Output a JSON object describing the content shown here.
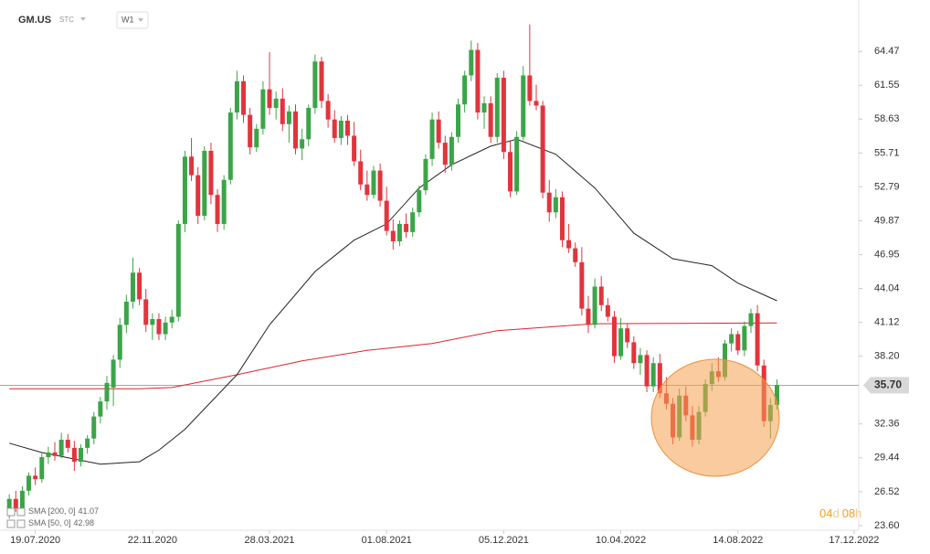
{
  "chart_data": {
    "type": "candlestick",
    "symbol": "GM.US",
    "symbol_tag": "STC",
    "interval": "W1",
    "up_color": "#3ca448",
    "down_color": "#e2343c",
    "xlim": [
      "11.06.2020",
      "22.12.2022"
    ],
    "ylim": [
      23.2,
      68.9
    ],
    "xticks": [
      "19.07.2020",
      "22.11.2020",
      "28.03.2021",
      "01.08.2021",
      "05.12.2021",
      "10.04.2022",
      "14.08.2022",
      "17.12.2022"
    ],
    "yticks": [
      64.47,
      61.55,
      58.63,
      55.71,
      52.79,
      49.87,
      46.95,
      44.04,
      41.12,
      {
        "value": 38.2,
        "label": "38.20"
      },
      32.36,
      29.44,
      26.52,
      {
        "value": 23.6,
        "label": "23.60"
      }
    ],
    "last_price": {
      "value": 35.7,
      "label": "35.70"
    },
    "countdown": [
      "04",
      "d",
      "08",
      "h"
    ],
    "x": [
      "21.06.2020",
      "28.06.2020",
      "05.07.2020",
      "12.07.2020",
      "19.07.2020",
      "26.07.2020",
      "02.08.2020",
      "09.08.2020",
      "16.08.2020",
      "23.08.2020",
      "30.08.2020",
      "06.09.2020",
      "13.09.2020",
      "20.09.2020",
      "27.09.2020",
      "04.10.2020",
      "11.10.2020",
      "18.10.2020",
      "25.10.2020",
      "01.11.2020",
      "08.11.2020",
      "15.11.2020",
      "22.11.2020",
      "29.11.2020",
      "06.12.2020",
      "13.12.2020",
      "20.12.2020",
      "27.12.2020",
      "03.01.2021",
      "10.01.2021",
      "17.01.2021",
      "24.01.2021",
      "31.01.2021",
      "07.02.2021",
      "14.02.2021",
      "21.02.2021",
      "28.02.2021",
      "07.03.2021",
      "14.03.2021",
      "21.03.2021",
      "28.03.2021",
      "04.04.2021",
      "11.04.2021",
      "18.04.2021",
      "25.04.2021",
      "02.05.2021",
      "09.05.2021",
      "16.05.2021",
      "23.05.2021",
      "30.05.2021",
      "06.06.2021",
      "13.06.2021",
      "20.06.2021",
      "27.06.2021",
      "04.07.2021",
      "11.07.2021",
      "18.07.2021",
      "25.07.2021",
      "01.08.2021",
      "08.08.2021",
      "15.08.2021",
      "22.08.2021",
      "29.08.2021",
      "05.09.2021",
      "12.09.2021",
      "19.09.2021",
      "26.09.2021",
      "03.10.2021",
      "10.10.2021",
      "17.10.2021",
      "24.10.2021",
      "31.10.2021",
      "07.11.2021",
      "14.11.2021",
      "21.11.2021",
      "28.11.2021",
      "05.12.2021",
      "12.12.2021",
      "19.12.2021",
      "26.12.2021",
      "02.01.2022",
      "09.01.2022",
      "16.01.2022",
      "23.01.2022",
      "30.01.2022",
      "06.02.2022",
      "13.02.2022",
      "20.02.2022",
      "27.02.2022",
      "06.03.2022",
      "13.03.2022",
      "20.03.2022",
      "27.03.2022",
      "03.04.2022",
      "10.04.2022",
      "17.04.2022",
      "24.04.2022",
      "01.05.2022",
      "08.05.2022",
      "15.05.2022",
      "22.05.2022",
      "29.05.2022",
      "05.06.2022",
      "12.06.2022",
      "19.06.2022",
      "26.06.2022",
      "03.07.2022",
      "10.07.2022",
      "17.07.2022",
      "24.07.2022",
      "31.07.2022",
      "07.08.2022",
      "14.08.2022",
      "21.08.2022",
      "28.08.2022",
      "04.09.2022",
      "11.09.2022",
      "18.09.2022",
      "25.09.2022"
    ],
    "ohlc": [
      [
        24.8,
        26.3,
        24.2,
        25.9
      ],
      [
        25.9,
        26.6,
        24.8,
        25.1
      ],
      [
        25.1,
        27.0,
        24.9,
        26.6
      ],
      [
        26.6,
        28.2,
        26.2,
        27.9
      ],
      [
        27.9,
        28.6,
        27.1,
        27.6
      ],
      [
        27.6,
        29.9,
        27.3,
        29.5
      ],
      [
        29.5,
        30.4,
        28.9,
        29.9
      ],
      [
        29.9,
        30.8,
        29.2,
        29.6
      ],
      [
        29.6,
        31.6,
        29.4,
        31.0
      ],
      [
        31.0,
        31.5,
        29.9,
        30.3
      ],
      [
        30.3,
        30.9,
        28.3,
        29.1
      ],
      [
        29.1,
        30.6,
        28.7,
        30.3
      ],
      [
        30.3,
        31.4,
        29.8,
        31.1
      ],
      [
        31.1,
        33.4,
        30.6,
        33.0
      ],
      [
        33.0,
        34.7,
        32.4,
        34.3
      ],
      [
        34.3,
        36.5,
        33.6,
        35.9
      ],
      [
        35.5,
        38.3,
        33.9,
        37.9
      ],
      [
        37.9,
        41.5,
        37.2,
        40.9
      ],
      [
        40.9,
        43.5,
        40.2,
        42.9
      ],
      [
        42.9,
        46.7,
        42.3,
        45.4
      ],
      [
        45.4,
        45.8,
        42.6,
        43.1
      ],
      [
        43.1,
        44.0,
        40.3,
        40.9
      ],
      [
        40.9,
        41.9,
        39.6,
        41.4
      ],
      [
        41.4,
        41.9,
        39.6,
        40.1
      ],
      [
        40.1,
        41.6,
        39.6,
        41.1
      ],
      [
        41.1,
        42.2,
        40.6,
        41.6
      ],
      [
        41.6,
        49.9,
        41.2,
        49.6
      ],
      [
        49.6,
        55.9,
        48.9,
        55.4
      ],
      [
        55.4,
        57.0,
        53.3,
        53.8
      ],
      [
        53.8,
        54.5,
        49.6,
        50.3
      ],
      [
        50.3,
        56.3,
        49.9,
        55.9
      ],
      [
        55.9,
        56.6,
        51.3,
        52.1
      ],
      [
        52.1,
        52.6,
        48.9,
        49.6
      ],
      [
        49.6,
        53.8,
        49.1,
        53.4
      ],
      [
        53.4,
        59.6,
        53.0,
        59.2
      ],
      [
        59.2,
        62.8,
        58.6,
        61.9
      ],
      [
        61.9,
        62.4,
        58.3,
        59.0
      ],
      [
        59.0,
        59.6,
        55.6,
        56.2
      ],
      [
        56.2,
        58.2,
        55.8,
        57.8
      ],
      [
        57.8,
        61.9,
        57.3,
        61.2
      ],
      [
        61.2,
        64.4,
        59.0,
        59.6
      ],
      [
        59.6,
        61.0,
        58.6,
        60.4
      ],
      [
        60.4,
        61.3,
        57.6,
        58.2
      ],
      [
        58.2,
        59.8,
        56.6,
        59.3
      ],
      [
        59.3,
        59.9,
        55.6,
        56.1
      ],
      [
        56.1,
        57.8,
        55.1,
        56.9
      ],
      [
        56.9,
        59.9,
        56.3,
        59.6
      ],
      [
        59.6,
        64.2,
        59.1,
        63.6
      ],
      [
        63.6,
        64.0,
        59.6,
        60.2
      ],
      [
        60.2,
        60.8,
        57.9,
        58.6
      ],
      [
        58.6,
        59.4,
        56.6,
        57.0
      ],
      [
        57.0,
        58.9,
        56.4,
        58.5
      ],
      [
        58.5,
        59.0,
        56.4,
        57.2
      ],
      [
        57.2,
        58.4,
        54.6,
        55.0
      ],
      [
        55.0,
        56.0,
        52.5,
        53.0
      ],
      [
        53.0,
        54.2,
        51.6,
        52.1
      ],
      [
        52.1,
        54.6,
        51.8,
        54.2
      ],
      [
        54.2,
        54.8,
        51.1,
        51.6
      ],
      [
        51.6,
        52.8,
        48.6,
        49.0
      ],
      [
        49.0,
        50.0,
        47.4,
        48.1
      ],
      [
        48.1,
        49.9,
        47.7,
        49.6
      ],
      [
        49.6,
        50.5,
        48.4,
        48.9
      ],
      [
        48.9,
        51.0,
        48.5,
        50.6
      ],
      [
        50.6,
        52.9,
        50.2,
        52.5
      ],
      [
        52.5,
        55.6,
        52.1,
        55.2
      ],
      [
        55.2,
        59.2,
        54.6,
        58.6
      ],
      [
        58.6,
        59.3,
        56.1,
        56.6
      ],
      [
        56.6,
        57.2,
        54.0,
        54.7
      ],
      [
        54.7,
        57.5,
        54.2,
        57.1
      ],
      [
        57.1,
        60.4,
        56.6,
        59.9
      ],
      [
        59.9,
        62.8,
        59.2,
        62.4
      ],
      [
        62.4,
        65.4,
        61.9,
        64.6
      ],
      [
        64.6,
        65.2,
        58.6,
        59.2
      ],
      [
        59.2,
        60.6,
        57.8,
        60.0
      ],
      [
        60.0,
        60.6,
        56.6,
        57.1
      ],
      [
        57.1,
        62.6,
        56.6,
        62.2
      ],
      [
        62.2,
        62.8,
        55.2,
        55.8
      ],
      [
        55.8,
        56.7,
        51.9,
        52.4
      ],
      [
        52.4,
        57.6,
        52.1,
        57.1
      ],
      [
        57.1,
        63.2,
        56.8,
        62.4
      ],
      [
        62.4,
        66.8,
        59.8,
        60.2
      ],
      [
        60.2,
        61.6,
        59.4,
        59.8
      ],
      [
        59.8,
        60.2,
        51.8,
        52.3
      ],
      [
        52.3,
        53.4,
        49.8,
        50.6
      ],
      [
        50.6,
        52.6,
        50.1,
        51.9
      ],
      [
        51.9,
        52.4,
        47.6,
        48.2
      ],
      [
        48.2,
        49.6,
        47.1,
        47.5
      ],
      [
        47.5,
        48.0,
        45.9,
        46.3
      ],
      [
        46.3,
        47.6,
        41.7,
        42.3
      ],
      [
        42.3,
        43.4,
        40.2,
        40.9
      ],
      [
        40.9,
        44.9,
        40.6,
        44.2
      ],
      [
        44.2,
        45.1,
        42.1,
        42.6
      ],
      [
        42.6,
        43.2,
        41.2,
        41.6
      ],
      [
        41.6,
        42.1,
        37.6,
        38.2
      ],
      [
        38.2,
        41.5,
        37.9,
        40.6
      ],
      [
        40.6,
        41.0,
        38.9,
        39.4
      ],
      [
        39.4,
        39.9,
        37.1,
        37.6
      ],
      [
        37.6,
        38.9,
        36.6,
        38.3
      ],
      [
        38.3,
        38.7,
        35.1,
        35.6
      ],
      [
        35.6,
        38.1,
        35.1,
        37.6
      ],
      [
        37.6,
        38.4,
        34.6,
        35.0
      ],
      [
        35.0,
        36.4,
        33.6,
        34.1
      ],
      [
        34.1,
        34.6,
        30.6,
        31.2
      ],
      [
        31.2,
        35.4,
        30.9,
        34.8
      ],
      [
        34.8,
        35.6,
        32.6,
        33.1
      ],
      [
        33.1,
        33.9,
        30.4,
        31.0
      ],
      [
        31.0,
        33.9,
        30.6,
        33.4
      ],
      [
        33.4,
        36.2,
        33.0,
        35.8
      ],
      [
        35.8,
        37.6,
        35.2,
        36.9
      ],
      [
        36.9,
        38.1,
        36.0,
        36.4
      ],
      [
        36.4,
        39.6,
        36.1,
        39.3
      ],
      [
        39.3,
        40.6,
        38.6,
        40.1
      ],
      [
        40.1,
        40.4,
        38.3,
        38.7
      ],
      [
        38.7,
        41.2,
        38.2,
        40.8
      ],
      [
        40.8,
        42.3,
        40.2,
        41.9
      ],
      [
        41.9,
        42.6,
        36.9,
        37.4
      ],
      [
        37.4,
        37.9,
        32.1,
        32.6
      ],
      [
        32.6,
        34.6,
        31.1,
        34.0
      ],
      [
        34.0,
        36.2,
        33.6,
        35.7
      ]
    ],
    "indicators": [
      {
        "name": "SMA [200, 0]",
        "color": "#d8262c",
        "x": [
          "21.06.2020",
          "08.11.2020",
          "13.12.2020",
          "21.02.2021",
          "02.05.2021",
          "11.07.2021",
          "19.09.2021",
          "28.11.2021",
          "06.02.2022",
          "13.03.2022",
          "25.09.2022"
        ],
        "values": [
          35.4,
          35.4,
          35.5,
          36.6,
          37.8,
          38.7,
          39.3,
          40.4,
          40.8,
          41.0,
          41.07
        ]
      },
      {
        "name": "SMA [50, 0]",
        "color": "#222222",
        "x": [
          "21.06.2020",
          "26.07.2020",
          "27.09.2020",
          "08.11.2020",
          "29.11.2020",
          "27.12.2020",
          "21.02.2021",
          "28.03.2021",
          "16.05.2021",
          "27.06.2021",
          "01.08.2021",
          "05.09.2021",
          "10.10.2021",
          "21.11.2021",
          "19.12.2021",
          "30.01.2022",
          "13.03.2022",
          "24.04.2022",
          "05.06.2022",
          "17.07.2022",
          "14.08.2022",
          "25.09.2022"
        ],
        "values": [
          30.7,
          29.9,
          28.9,
          29.1,
          30.1,
          31.9,
          36.6,
          40.9,
          45.5,
          48.2,
          49.6,
          52.7,
          54.7,
          56.3,
          56.9,
          55.6,
          52.7,
          48.8,
          46.6,
          46.0,
          44.5,
          42.98
        ]
      }
    ]
  }
}
